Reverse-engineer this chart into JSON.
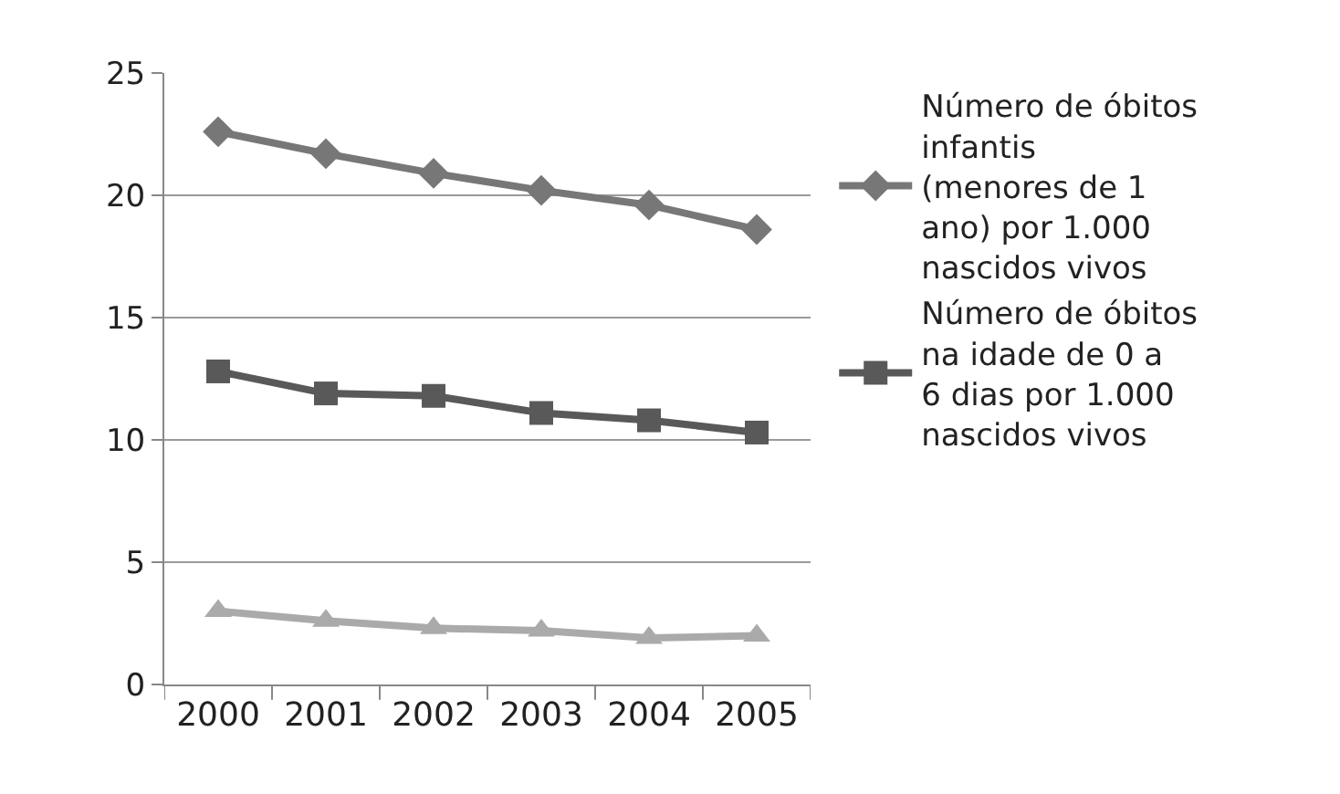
{
  "chart_data": {
    "type": "line",
    "categories": [
      "2000",
      "2001",
      "2002",
      "2003",
      "2004",
      "2005"
    ],
    "series": [
      {
        "name": "Número de óbitos infantis (menores de 1 ano) por 1.000 nascidos vivos",
        "color": "#777777",
        "marker": "diamond",
        "values": [
          22.6,
          21.7,
          20.9,
          20.2,
          19.6,
          18.6
        ]
      },
      {
        "name": "Número de óbitos na idade de 0 a 6 dias por 1.000 nascidos vivos",
        "color": "#595959",
        "marker": "square",
        "values": [
          12.8,
          11.9,
          11.8,
          11.1,
          10.8,
          10.3
        ]
      },
      {
        "color": "#aaaaaa",
        "marker": "triangle",
        "values": [
          3.0,
          2.6,
          2.3,
          2.2,
          1.9,
          2.0
        ]
      }
    ],
    "ylim": [
      0,
      25
    ],
    "yticks": [
      0,
      5,
      10,
      15,
      20,
      25
    ],
    "grid": "y",
    "legend": "right",
    "line_style": "solid"
  }
}
